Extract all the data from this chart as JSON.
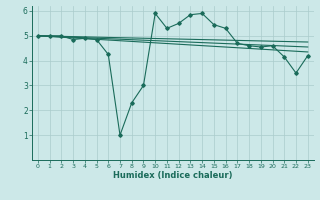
{
  "title": "",
  "xlabel": "Humidex (Indice chaleur)",
  "ylabel": "",
  "background_color": "#cce8e8",
  "grid_color": "#aacccc",
  "line_color": "#1a6b5a",
  "xlim": [
    -0.5,
    23.5
  ],
  "ylim": [
    0,
    6.2
  ],
  "xticks": [
    0,
    1,
    2,
    3,
    4,
    5,
    6,
    7,
    8,
    9,
    10,
    11,
    12,
    13,
    14,
    15,
    16,
    17,
    18,
    19,
    20,
    21,
    22,
    23
  ],
  "yticks": [
    1,
    2,
    3,
    4,
    5,
    6
  ],
  "series1_x": [
    0,
    1,
    2,
    3,
    4,
    5,
    6,
    7,
    8,
    9,
    10,
    11,
    12,
    13,
    14,
    15,
    16,
    17,
    18,
    19,
    20,
    21,
    22,
    23
  ],
  "series1_y": [
    5.0,
    5.0,
    5.0,
    4.85,
    4.9,
    4.85,
    4.25,
    1.0,
    2.3,
    3.0,
    5.9,
    5.3,
    5.5,
    5.85,
    5.9,
    5.45,
    5.3,
    4.7,
    4.6,
    4.55,
    4.6,
    4.15,
    3.5,
    4.2
  ],
  "series2_x": [
    0,
    23
  ],
  "series2_y": [
    5.0,
    4.55
  ],
  "series3_x": [
    0,
    23
  ],
  "series3_y": [
    5.0,
    4.75
  ],
  "series4_x": [
    0,
    23
  ],
  "series4_y": [
    5.0,
    4.35
  ]
}
